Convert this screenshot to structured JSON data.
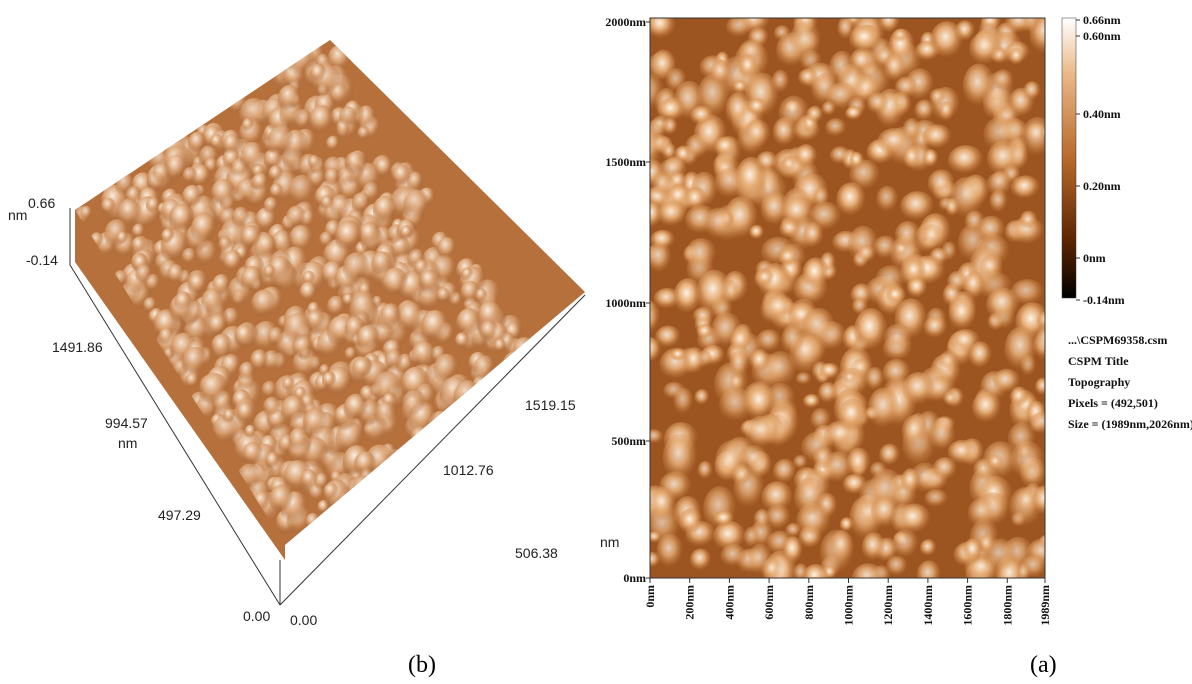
{
  "panel_b": {
    "z_unit": "nm",
    "z_max": "0.66",
    "z_min": "-0.14",
    "y_ticks": [
      "1491.86",
      "994.57",
      "497.29",
      "0.00"
    ],
    "y_unit": "nm",
    "x_ticks": [
      "0.00",
      "506.38",
      "1012.76",
      "1519.15"
    ],
    "x_unit": "nm",
    "caption": "(b)"
  },
  "panel_a": {
    "y_ticks": [
      "2000nm",
      "1500nm",
      "1000nm",
      "500nm",
      "0nm"
    ],
    "x_ticks": [
      "0nm",
      "200nm",
      "400nm",
      "600nm",
      "800nm",
      "1000nm",
      "1200nm",
      "1400nm",
      "1600nm",
      "1800nm",
      "1989nm"
    ],
    "colorbar_labels": [
      "0.66nm",
      "0.60nm",
      "0.40nm",
      "0.20nm",
      "0nm",
      "-0.14nm"
    ],
    "info": [
      "...\\CSPM69358.csm",
      "CSPM Title",
      "Topography",
      "Pixels = (492,501)",
      "Size = (1989nm,2026nm)"
    ],
    "caption": "(a)"
  }
}
